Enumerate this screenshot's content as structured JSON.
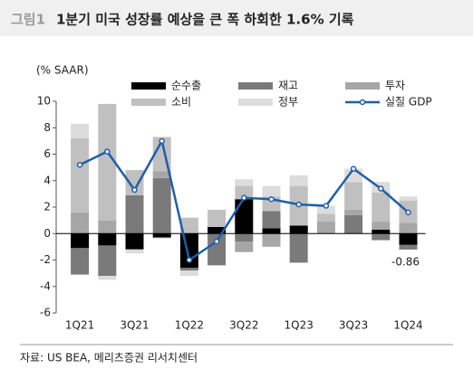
{
  "header": {
    "label": "그림1",
    "title": "1분기 미국 성장률 예상을 큰 폭 하회한 1.6% 기록"
  },
  "chart_data": {
    "type": "bar",
    "stacked": true,
    "y_label": "(% SAAR)",
    "categories": [
      "1Q21",
      null,
      "3Q21",
      null,
      "1Q22",
      null,
      "3Q22",
      null,
      "1Q23",
      null,
      "3Q23",
      null,
      "1Q24"
    ],
    "ylim": [
      -6,
      10
    ],
    "yticks": [
      -6,
      -4,
      -2,
      0,
      2,
      4,
      6,
      8,
      10
    ],
    "series": [
      {
        "name": "순수출",
        "color": "#000000",
        "values": [
          -1.1,
          -0.9,
          -1.2,
          -0.3,
          -2.6,
          0.5,
          2.6,
          0.4,
          0.6,
          0,
          0,
          0.3,
          -0.86
        ]
      },
      {
        "name": "재고",
        "color": "#7a7a7a",
        "values": [
          -2.0,
          -2.3,
          2.9,
          4.2,
          -0.2,
          -2.4,
          -0.6,
          1.3,
          -2.2,
          0,
          1.4,
          -0.5,
          -0.35
        ]
      },
      {
        "name": "투자",
        "color": "#a6a6a6",
        "values": [
          1.6,
          1.0,
          0,
          0.5,
          0,
          0,
          -0.8,
          -1.0,
          0,
          0.9,
          0.4,
          0.6,
          0.8
        ]
      },
      {
        "name": "소비",
        "color": "#c0c0c0",
        "values": [
          5.6,
          8.8,
          1.9,
          2.6,
          1.2,
          1.3,
          1.0,
          1.1,
          3.0,
          0.6,
          2.1,
          2.2,
          1.7
        ]
      },
      {
        "name": "정부",
        "color": "#dcdcdc",
        "values": [
          1.1,
          -0.3,
          -0.3,
          -0.1,
          -0.4,
          0,
          0.5,
          0.8,
          0.8,
          0.6,
          1.0,
          0.8,
          0.3
        ]
      },
      {
        "name": "실질 GDP",
        "type": "line",
        "color": "#1f5fa8",
        "values": [
          5.2,
          6.2,
          3.3,
          7.0,
          -2.0,
          -0.6,
          2.7,
          2.6,
          2.2,
          2.1,
          4.9,
          3.4,
          1.6
        ]
      }
    ],
    "annotation": "-0.86",
    "source": "자료: US BEA, 메리츠증권 리서치센터"
  }
}
